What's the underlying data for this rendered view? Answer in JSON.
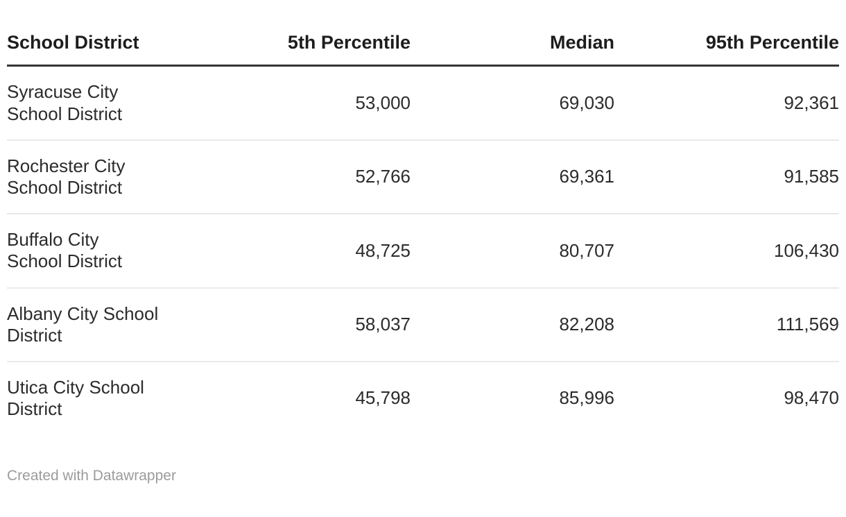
{
  "table": {
    "columns": [
      {
        "label": "School District"
      },
      {
        "label": "5th Percentile"
      },
      {
        "label": "Median"
      },
      {
        "label": "95th Percentile"
      }
    ],
    "rows": [
      {
        "district": "Syracuse City\nSchool District",
        "p5": "53,000",
        "median": "69,030",
        "p95": "92,361"
      },
      {
        "district": "Rochester City\nSchool District",
        "p5": "52,766",
        "median": "69,361",
        "p95": "91,585"
      },
      {
        "district": "Buffalo City\nSchool District",
        "p5": "48,725",
        "median": "80,707",
        "p95": "106,430"
      },
      {
        "district": "Albany City School\nDistrict",
        "p5": "58,037",
        "median": "82,208",
        "p95": "111,569"
      },
      {
        "district": "Utica City School\nDistrict",
        "p5": "45,798",
        "median": "85,996",
        "p95": "98,470"
      }
    ]
  },
  "footer": {
    "attribution": "Created with Datawrapper"
  },
  "colors": {
    "background": "#ffffff",
    "header_text": "#1d1d1d",
    "body_text": "#2b2b2b",
    "header_rule": "#333333",
    "row_rule": "#e9e9e9",
    "footer_text": "#9b9b9b"
  },
  "chart_data": {
    "type": "table",
    "title": "",
    "columns": [
      "School District",
      "5th Percentile",
      "Median",
      "95th Percentile"
    ],
    "rows": [
      [
        "Syracuse City School District",
        53000,
        69030,
        92361
      ],
      [
        "Rochester City School District",
        52766,
        69361,
        91585
      ],
      [
        "Buffalo City School District",
        48725,
        80707,
        106430
      ],
      [
        "Albany City School District",
        58037,
        82208,
        111569
      ],
      [
        "Utica City School District",
        45798,
        85996,
        98470
      ]
    ],
    "attribution": "Created with Datawrapper"
  }
}
